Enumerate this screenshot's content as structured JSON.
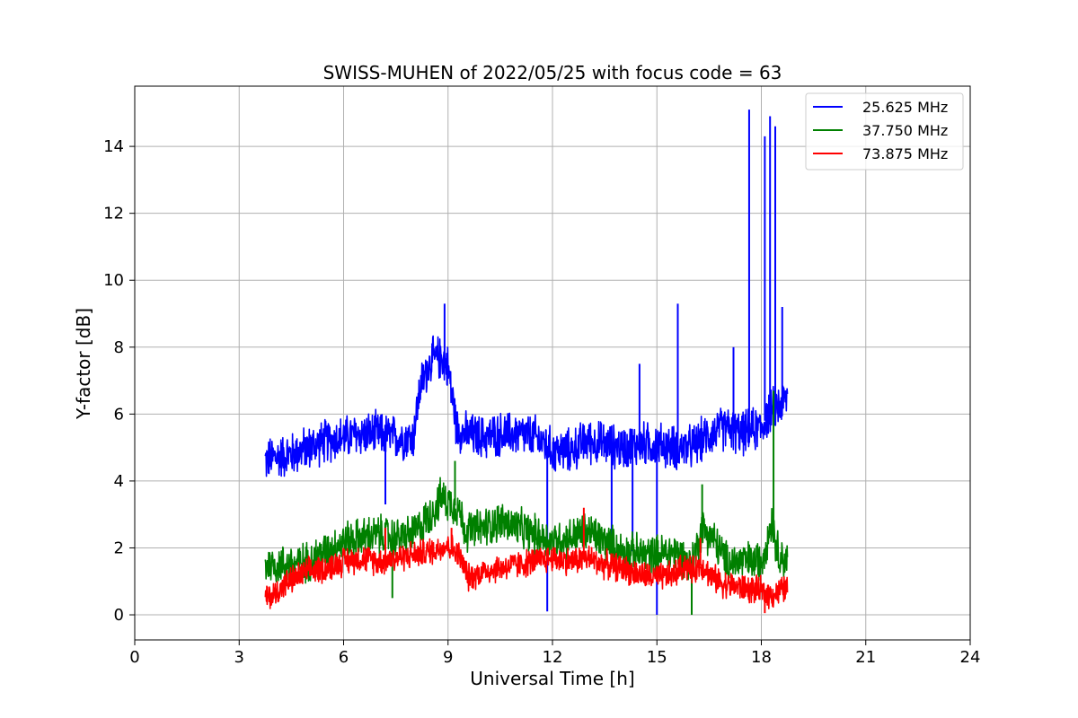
{
  "chart_data": {
    "type": "line",
    "title": "SWISS-MUHEN of 2022/05/25 with focus code = 63",
    "xlabel": "Universal Time [h]",
    "ylabel": "Y-factor [dB]",
    "xlim": [
      0,
      24
    ],
    "ylim": [
      -0.75,
      15.8
    ],
    "xticks": [
      0,
      3,
      6,
      9,
      12,
      15,
      18,
      21,
      24
    ],
    "yticks": [
      0,
      2,
      4,
      6,
      8,
      10,
      12,
      14
    ],
    "grid": true,
    "legend_position": "top-right",
    "series": [
      {
        "name": "25.625 MHz",
        "color": "#0000ff",
        "x": [
          3.75,
          4.0,
          4.5,
          5.0,
          5.5,
          6.0,
          6.5,
          7.0,
          7.5,
          8.0,
          8.2,
          8.5,
          8.8,
          9.0,
          9.25,
          9.5,
          10.0,
          10.5,
          11.0,
          11.5,
          11.8,
          12.0,
          12.5,
          13.0,
          13.5,
          14.0,
          14.5,
          15.0,
          15.5,
          16.0,
          16.5,
          17.0,
          17.4,
          17.7,
          18.0,
          18.2,
          18.4,
          18.6,
          18.75
        ],
        "y": [
          4.6,
          4.7,
          4.8,
          5.0,
          5.2,
          5.3,
          5.4,
          5.4,
          5.3,
          5.3,
          6.8,
          7.6,
          7.7,
          7.4,
          5.6,
          5.4,
          5.3,
          5.4,
          5.4,
          5.3,
          5.1,
          4.9,
          4.9,
          5.2,
          5.1,
          5.0,
          5.1,
          5.1,
          5.0,
          5.0,
          5.4,
          5.6,
          5.4,
          5.5,
          5.6,
          6.0,
          6.2,
          6.3,
          6.5
        ],
        "spikes": [
          {
            "x": 17.65,
            "y": 15.1
          },
          {
            "x": 18.25,
            "y": 14.9
          },
          {
            "x": 18.1,
            "y": 14.3
          },
          {
            "x": 18.4,
            "y": 14.6
          },
          {
            "x": 15.6,
            "y": 9.3
          },
          {
            "x": 8.9,
            "y": 9.3
          },
          {
            "x": 18.6,
            "y": 9.2
          },
          {
            "x": 17.2,
            "y": 8.0
          },
          {
            "x": 14.5,
            "y": 7.5
          },
          {
            "x": 11.85,
            "y": 0.1
          },
          {
            "x": 15.0,
            "y": 0.0
          },
          {
            "x": 13.7,
            "y": 2.0
          },
          {
            "x": 14.3,
            "y": 1.9
          },
          {
            "x": 7.2,
            "y": 3.3
          }
        ]
      },
      {
        "name": "37.750 MHz",
        "color": "#008000",
        "x": [
          3.75,
          4.0,
          4.5,
          5.0,
          5.5,
          6.0,
          6.5,
          7.0,
          7.5,
          8.0,
          8.5,
          8.8,
          9.0,
          9.3,
          9.5,
          10.0,
          10.5,
          11.0,
          11.5,
          12.0,
          12.5,
          13.0,
          13.5,
          14.0,
          14.5,
          15.0,
          15.5,
          16.0,
          16.3,
          16.6,
          17.0,
          17.5,
          18.0,
          18.3,
          18.5,
          18.75
        ],
        "y": [
          1.5,
          1.5,
          1.5,
          1.6,
          1.9,
          2.2,
          2.3,
          2.4,
          2.3,
          2.4,
          3.0,
          3.5,
          3.4,
          3.2,
          2.5,
          2.6,
          2.8,
          2.6,
          2.4,
          2.2,
          2.3,
          2.5,
          2.2,
          1.9,
          1.8,
          1.8,
          1.9,
          1.5,
          2.6,
          2.3,
          1.6,
          1.6,
          1.6,
          2.8,
          1.8,
          1.6
        ],
        "spikes": [
          {
            "x": 18.35,
            "y": 6.7
          },
          {
            "x": 9.2,
            "y": 4.6
          },
          {
            "x": 16.3,
            "y": 3.9
          },
          {
            "x": 7.4,
            "y": 0.5
          },
          {
            "x": 16.0,
            "y": 0.0
          }
        ]
      },
      {
        "name": "73.875 MHz",
        "color": "#ff0000",
        "x": [
          3.75,
          4.0,
          4.3,
          4.6,
          5.0,
          5.5,
          6.0,
          6.5,
          7.0,
          7.5,
          8.0,
          8.5,
          9.0,
          9.3,
          9.6,
          10.0,
          10.5,
          11.0,
          11.5,
          12.0,
          12.5,
          13.0,
          13.5,
          14.0,
          14.5,
          15.0,
          15.5,
          15.8,
          16.0,
          16.3,
          16.6,
          17.0,
          17.5,
          18.0,
          18.3,
          18.5,
          18.75
        ],
        "y": [
          0.5,
          0.6,
          0.9,
          1.1,
          1.3,
          1.4,
          1.6,
          1.7,
          1.6,
          1.7,
          1.8,
          1.9,
          2.1,
          1.8,
          1.1,
          1.3,
          1.4,
          1.5,
          1.6,
          1.7,
          1.6,
          1.7,
          1.5,
          1.4,
          1.2,
          1.1,
          1.2,
          1.5,
          1.3,
          1.5,
          1.1,
          0.9,
          0.8,
          0.7,
          0.6,
          0.7,
          0.8
        ],
        "spikes": [
          {
            "x": 12.9,
            "y": 3.2
          },
          {
            "x": 9.1,
            "y": 2.6
          },
          {
            "x": 7.2,
            "y": 2.6
          },
          {
            "x": 16.25,
            "y": 2.3
          },
          {
            "x": 18.1,
            "y": 0.05
          }
        ]
      }
    ]
  }
}
